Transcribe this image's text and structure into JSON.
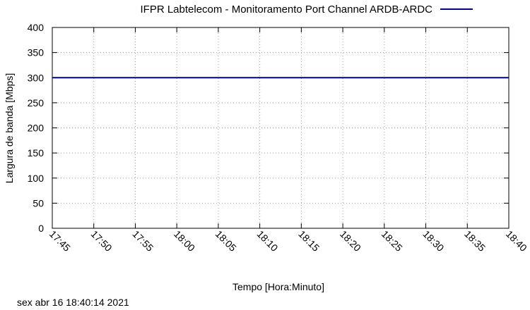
{
  "chart_data": {
    "type": "line",
    "legend_position": "top-center",
    "grid": true,
    "xlabel": "Tempo [Hora:Minuto]",
    "ylabel": "Largura de banda [Mbps]",
    "ylim": [
      0,
      400
    ],
    "yticks": [
      0,
      50,
      100,
      150,
      200,
      250,
      300,
      350,
      400
    ],
    "xlim": [
      "17:45",
      "18:40"
    ],
    "xticks": [
      "17:45",
      "17:50",
      "17:55",
      "18:00",
      "18:05",
      "18:10",
      "18:15",
      "18:20",
      "18:25",
      "18:30",
      "18:35",
      "18:40"
    ],
    "series": [
      {
        "name": "IFPR Labtelecom - Monitoramento Port Channel ARDB-ARDC",
        "color": "#00008b",
        "x": [
          "17:45",
          "18:40"
        ],
        "values": [
          300,
          300
        ]
      }
    ]
  },
  "footer": {
    "timestamp": "sex abr 16 18:40:14 2021"
  }
}
